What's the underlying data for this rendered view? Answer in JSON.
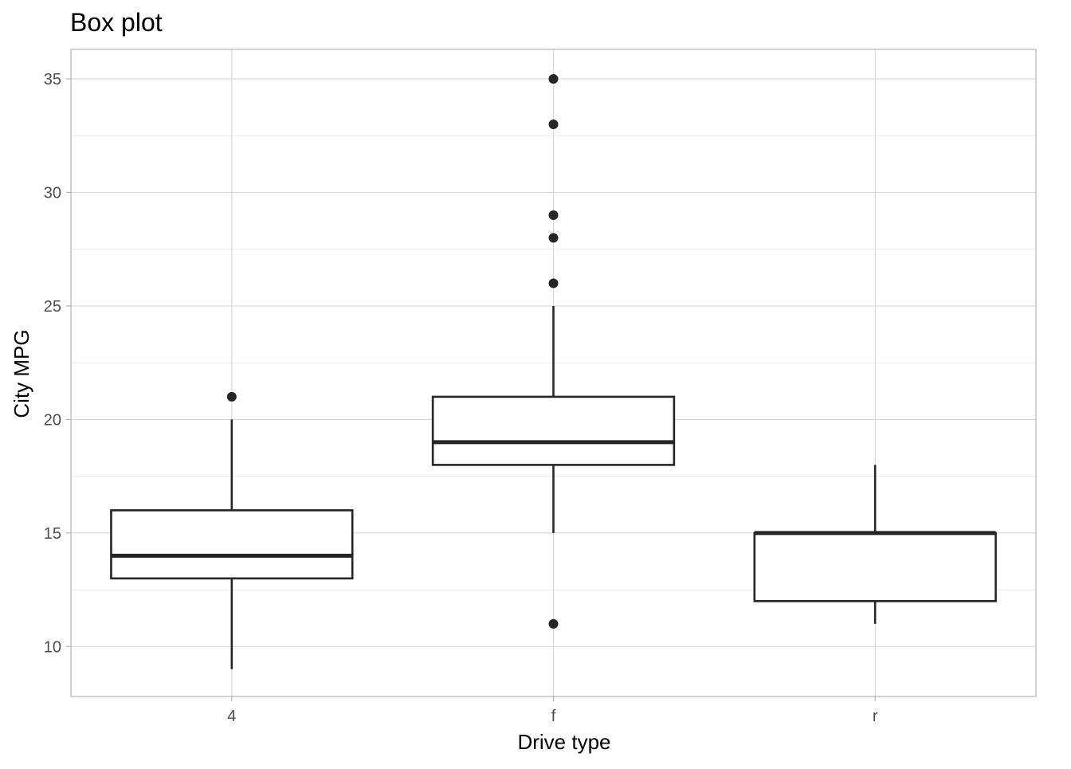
{
  "chart_data": {
    "type": "box",
    "title": "Box plot",
    "xlabel": "Drive type",
    "ylabel": "City MPG",
    "ylim": [
      7.8,
      36.3
    ],
    "yticks": [
      10,
      15,
      20,
      25,
      30,
      35
    ],
    "grid": true,
    "colors": {
      "box_line": "#262626",
      "grid_major": "#d9d9d9",
      "grid_minor": "#ebebeb",
      "panel_border": "#b3b3b3",
      "tick_text": "#4d4d4d"
    },
    "categories": [
      "4",
      "f",
      "r"
    ],
    "boxes": [
      {
        "category": "4",
        "lower_whisker": 9,
        "q1": 13,
        "median": 14,
        "q3": 16,
        "upper_whisker": 20,
        "outliers": [
          21
        ]
      },
      {
        "category": "f",
        "lower_whisker": 15,
        "q1": 18,
        "median": 19,
        "q3": 21,
        "upper_whisker": 25,
        "outliers": [
          11,
          26,
          28,
          29,
          33,
          35
        ]
      },
      {
        "category": "r",
        "lower_whisker": 11,
        "q1": 12,
        "median": 15,
        "q3": 15,
        "upper_whisker": 18,
        "outliers": []
      }
    ]
  }
}
